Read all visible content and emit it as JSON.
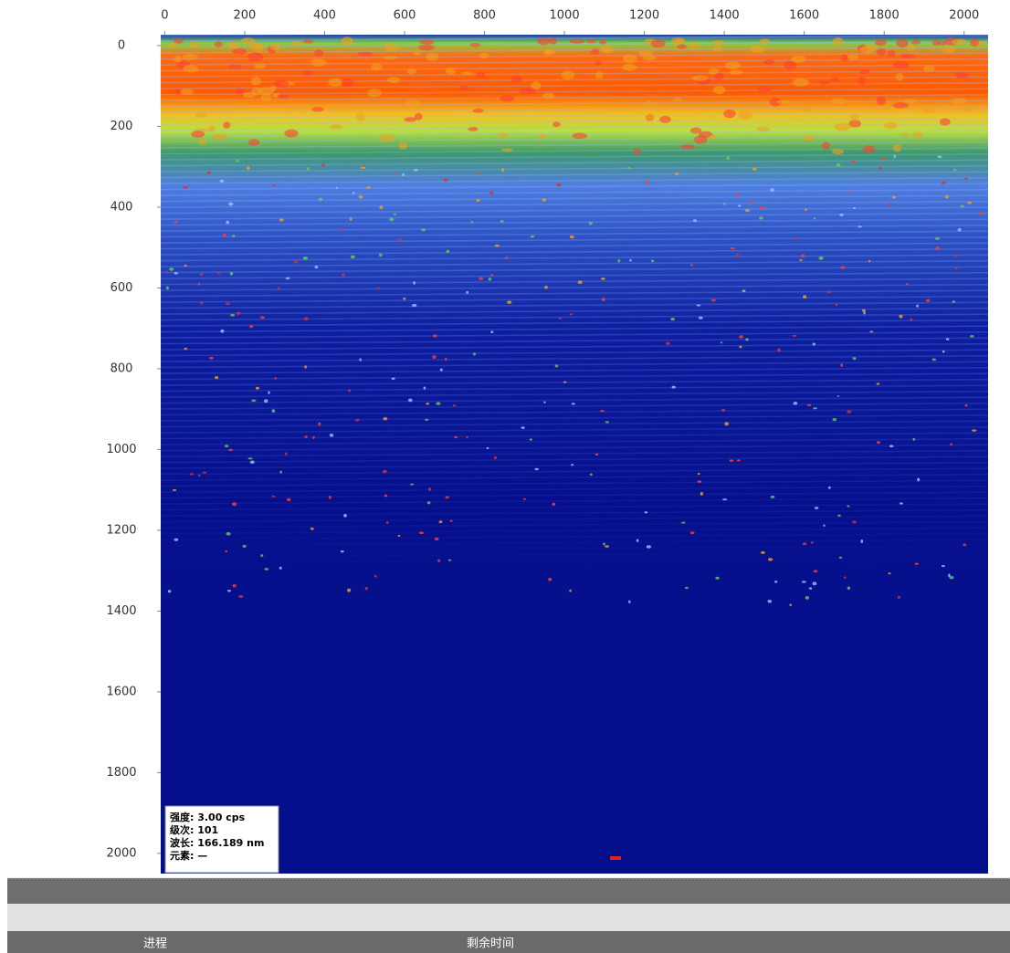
{
  "chart_data": {
    "type": "heatmap",
    "xlim": [
      -10,
      2060
    ],
    "xticks": [
      0,
      200,
      400,
      600,
      800,
      1000,
      1200,
      1400,
      1600,
      1800,
      2000
    ],
    "ylim": [
      -27,
      2050
    ],
    "yticks": [
      0,
      200,
      400,
      600,
      800,
      1000,
      1200,
      1400,
      1600,
      1800,
      2000
    ]
  },
  "tooltip": {
    "lines": [
      "强度: 3.00 cps",
      "级次: 101",
      "波长: 166.189 nm",
      "元素: —"
    ]
  },
  "status_bar": {
    "columns": [
      "进程",
      "剩余时间"
    ]
  }
}
